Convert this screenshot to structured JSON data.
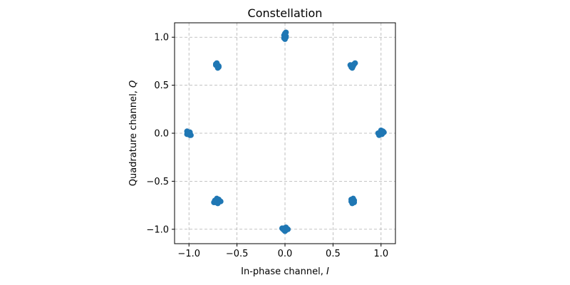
{
  "chart_data": {
    "type": "scatter",
    "title": "Constellation",
    "xlabel": "In-phase channel, ",
    "xlabel_var": "I",
    "ylabel": "Quadrature channel, ",
    "ylabel_var": "Q",
    "xlim": [
      -1.15,
      1.15
    ],
    "ylim": [
      -1.15,
      1.15
    ],
    "xticks": [
      -1.0,
      -0.5,
      0.0,
      0.5,
      1.0
    ],
    "yticks": [
      -1.0,
      -0.5,
      0.0,
      0.5,
      1.0
    ],
    "xtick_labels": [
      "−1.0",
      "−0.5",
      "0.0",
      "0.5",
      "1.0"
    ],
    "ytick_labels": [
      "−1.0",
      "−0.5",
      "0.0",
      "0.5",
      "1.0"
    ],
    "grid": true,
    "marker_color": "#1f77b4",
    "series": [
      {
        "x": [
          1.0,
          0.99,
          1.01,
          1.02,
          0.98,
          1.0,
          0.97,
          1.03,
          1.0,
          1.01,
          0.707,
          0.7,
          0.72,
          0.69,
          0.71,
          0.73,
          0.7,
          0.68,
          0.71,
          0.72,
          0.0,
          -0.01,
          0.01,
          0.0,
          0.0,
          0.01,
          -0.01,
          0.0,
          0.01,
          0.0,
          -0.707,
          -0.7,
          -0.72,
          -0.69,
          -0.71,
          -0.71,
          -0.7,
          -0.72,
          -0.69,
          -0.71,
          -1.0,
          -0.99,
          -1.01,
          -1.02,
          -0.98,
          -1.0,
          -1.01,
          -0.99,
          -1.0,
          -1.02,
          -0.707,
          -0.7,
          -0.72,
          -0.69,
          -0.71,
          -0.74,
          -0.67,
          -0.71,
          -0.7,
          -0.73,
          0.0,
          -0.01,
          0.01,
          0.02,
          -0.02,
          0.0,
          0.01,
          -0.01,
          0.03,
          -0.03,
          0.707,
          0.7,
          0.72,
          0.69,
          0.71,
          0.7,
          0.72,
          0.71,
          0.69,
          0.7
        ],
        "y": [
          0.0,
          0.01,
          -0.01,
          0.02,
          -0.02,
          0.03,
          0.0,
          0.01,
          -0.01,
          0.0,
          0.707,
          0.7,
          0.72,
          0.69,
          0.71,
          0.73,
          0.68,
          0.71,
          0.7,
          0.72,
          1.0,
          0.99,
          1.01,
          1.03,
          0.98,
          1.05,
          1.02,
          0.99,
          1.0,
          1.04,
          0.707,
          0.7,
          0.72,
          0.69,
          0.71,
          0.73,
          0.68,
          0.71,
          0.7,
          0.72,
          0.0,
          0.01,
          -0.01,
          0.02,
          -0.02,
          0.0,
          0.01,
          -0.02,
          0.01,
          -0.01,
          -0.707,
          -0.7,
          -0.72,
          -0.69,
          -0.71,
          -0.72,
          -0.71,
          -0.68,
          -0.73,
          -0.7,
          -1.0,
          -0.99,
          -1.01,
          -1.0,
          -1.0,
          -1.02,
          -0.98,
          -1.01,
          -1.0,
          -0.99,
          -0.707,
          -0.7,
          -0.72,
          -0.69,
          -0.71,
          -0.73,
          -0.7,
          -0.68,
          -0.71,
          -0.72
        ]
      }
    ]
  }
}
